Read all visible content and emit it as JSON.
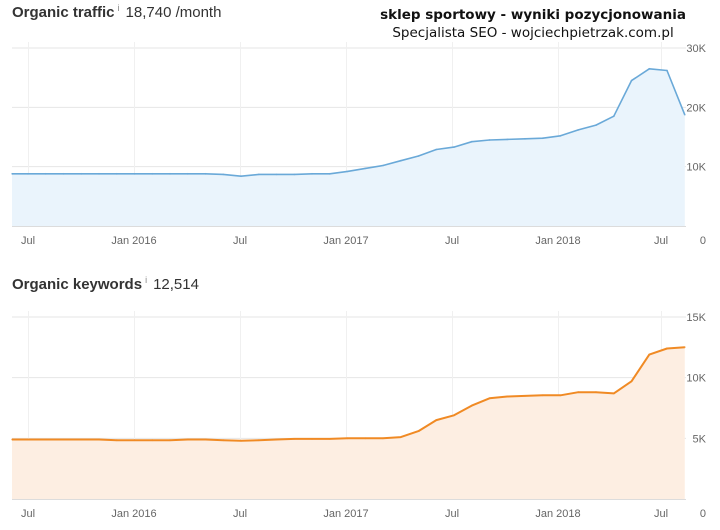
{
  "watermark": {
    "line1": "sklep sportowy - wyniki pozycjonowania",
    "line2": "Specjalista SEO - wojciechpietrzak.com.pl"
  },
  "info_glyph": "i",
  "colors": {
    "traffic": "#6aa9d8",
    "traffic_fill": "#eaf4fc",
    "keywords": "#f08a24",
    "keywords_fill": "#fdeee2",
    "grid": "#e6e6e6"
  },
  "chart_data": [
    {
      "type": "area",
      "title": "Organic traffic",
      "value_label": "18,740 /month",
      "x_ticks": [
        "Jul",
        "Jan 2016",
        "Jul",
        "Jan 2017",
        "Jul",
        "Jan 2018",
        "Jul"
      ],
      "y_ticks": [
        "0",
        "10K",
        "20K",
        "30K"
      ],
      "ylim": [
        0,
        30000
      ],
      "x": [
        "2015-06",
        "2015-07",
        "2015-08",
        "2015-09",
        "2015-10",
        "2015-11",
        "2015-12",
        "2016-01",
        "2016-02",
        "2016-03",
        "2016-04",
        "2016-05",
        "2016-06",
        "2016-07",
        "2016-08",
        "2016-09",
        "2016-10",
        "2016-11",
        "2016-12",
        "2017-01",
        "2017-02",
        "2017-03",
        "2017-04",
        "2017-05",
        "2017-06",
        "2017-07",
        "2017-08",
        "2017-09",
        "2017-10",
        "2017-11",
        "2017-12",
        "2018-01",
        "2018-02",
        "2018-03",
        "2018-04",
        "2018-05",
        "2018-06",
        "2018-07",
        "2018-08"
      ],
      "y": [
        8800,
        8800,
        8800,
        8800,
        8800,
        8800,
        8800,
        8800,
        8800,
        8800,
        8800,
        8800,
        8700,
        8400,
        8700,
        8700,
        8700,
        8800,
        8800,
        9200,
        9700,
        10200,
        11000,
        11800,
        12900,
        13300,
        14200,
        14500,
        14600,
        14700,
        14800,
        15200,
        16200,
        17000,
        18500,
        24500,
        26500,
        26200,
        18740
      ]
    },
    {
      "type": "area",
      "title": "Organic keywords",
      "value_label": "12,514",
      "x_ticks": [
        "Jul",
        "Jan 2016",
        "Jul",
        "Jan 2017",
        "Jul",
        "Jan 2018",
        "Jul"
      ],
      "y_ticks": [
        "0",
        "5K",
        "10K",
        "15K"
      ],
      "ylim": [
        0,
        15000
      ],
      "x": [
        "2015-06",
        "2015-07",
        "2015-08",
        "2015-09",
        "2015-10",
        "2015-11",
        "2015-12",
        "2016-01",
        "2016-02",
        "2016-03",
        "2016-04",
        "2016-05",
        "2016-06",
        "2016-07",
        "2016-08",
        "2016-09",
        "2016-10",
        "2016-11",
        "2016-12",
        "2017-01",
        "2017-02",
        "2017-03",
        "2017-04",
        "2017-05",
        "2017-06",
        "2017-07",
        "2017-08",
        "2017-09",
        "2017-10",
        "2017-11",
        "2017-12",
        "2018-01",
        "2018-02",
        "2018-03",
        "2018-04",
        "2018-05",
        "2018-06",
        "2018-07",
        "2018-08"
      ],
      "y": [
        4900,
        4900,
        4900,
        4900,
        4900,
        4900,
        4850,
        4850,
        4850,
        4850,
        4900,
        4900,
        4850,
        4800,
        4850,
        4900,
        4950,
        4950,
        4950,
        5000,
        5000,
        5000,
        5100,
        5600,
        6500,
        6900,
        7700,
        8300,
        8450,
        8500,
        8550,
        8550,
        8800,
        8800,
        8700,
        9700,
        11900,
        12400,
        12514
      ]
    }
  ]
}
